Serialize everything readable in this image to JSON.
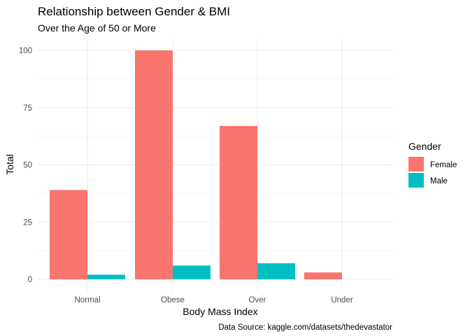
{
  "chart_data": {
    "type": "bar",
    "title": "Relationship between Gender & BMI",
    "subtitle": "Over the Age of 50 or More",
    "xlabel": "Body Mass Index",
    "ylabel": "Total",
    "caption": "Data Source: kaggle.com/datasets/thedevastator",
    "categories": [
      "Normal",
      "Obese",
      "Over",
      "Under"
    ],
    "series": [
      {
        "name": "Female",
        "values": [
          39,
          100,
          67,
          3
        ],
        "color": "#F8766D"
      },
      {
        "name": "Male",
        "values": [
          2,
          6,
          7,
          0
        ],
        "color": "#00BFC4"
      }
    ],
    "ylim": [
      0,
      105
    ],
    "yticks": [
      0,
      25,
      50,
      75,
      100
    ],
    "grid": true,
    "legend": {
      "title": "Gender",
      "placement": "right"
    }
  }
}
